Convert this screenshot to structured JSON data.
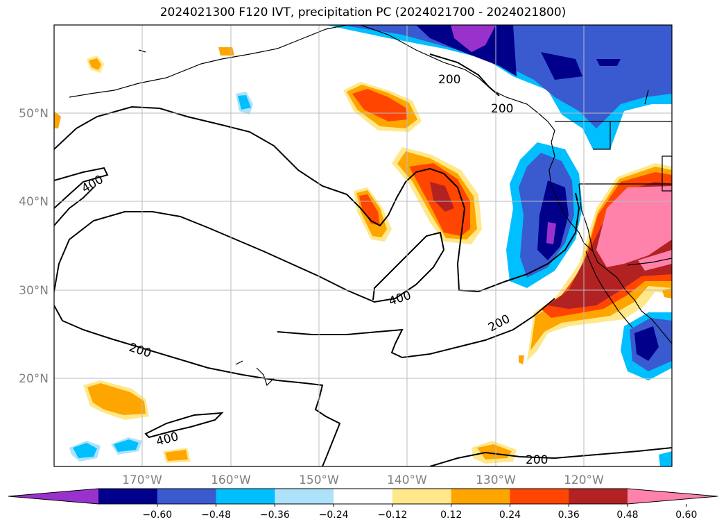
{
  "title": "2024021300 F120 IVT, precipitation PC (2024021700 - 2024021800)",
  "lat_labels": [
    "50°N",
    "40°N",
    "30°N",
    "20°N"
  ],
  "lon_labels": [
    "170°W",
    "160°W",
    "150°W",
    "140°W",
    "130°W",
    "120°W"
  ],
  "contour_labels": [
    "200",
    "200",
    "400",
    "400",
    "200",
    "400",
    "200",
    "200"
  ],
  "colorbar": {
    "ticks": [
      "−0.60",
      "−0.48",
      "−0.36",
      "−0.24",
      "−0.12",
      "0.12",
      "0.24",
      "0.36",
      "0.48",
      "0.60"
    ],
    "colors": [
      "#9932CC",
      "#00008B",
      "#3A5BD0",
      "#00BFFF",
      "#ADE2FA",
      "#FFFFFF",
      "#FFE88A",
      "#FFA500",
      "#FF4500",
      "#B22222",
      "#FF82AB"
    ]
  }
}
